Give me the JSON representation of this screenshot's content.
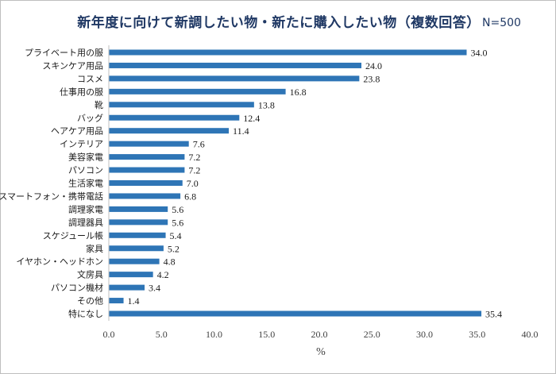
{
  "chart_data": {
    "type": "bar",
    "orientation": "horizontal",
    "title": "新年度に向けて新調したい物・新たに購入したい物（複数回答）",
    "sample_label": "N=500",
    "xlabel": "%",
    "ylabel": "",
    "xlim": [
      0,
      40
    ],
    "x_ticks": [
      "0.0",
      "5.0",
      "10.0",
      "15.0",
      "20.0",
      "25.0",
      "30.0",
      "35.0",
      "40.0"
    ],
    "grid": false,
    "bar_color": "#2e75b6",
    "categories": [
      "プライベート用の服",
      "スキンケア用品",
      "コスメ",
      "仕事用の服",
      "靴",
      "バッグ",
      "ヘアケア用品",
      "インテリア",
      "美容家電",
      "パソコン",
      "生活家電",
      "スマートフォン・携帯電話",
      "調理家電",
      "調理器具",
      "スケジュール帳",
      "家具",
      "イヤホン・ヘッドホン",
      "文房具",
      "パソコン機材",
      "その他",
      "特になし"
    ],
    "values": [
      34.0,
      24.0,
      23.8,
      16.8,
      13.8,
      12.4,
      11.4,
      7.6,
      7.2,
      7.2,
      7.0,
      6.8,
      5.6,
      5.6,
      5.4,
      5.2,
      4.8,
      4.2,
      3.4,
      1.4,
      35.4
    ]
  }
}
